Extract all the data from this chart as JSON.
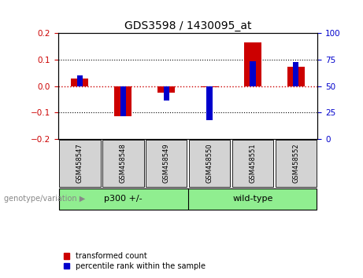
{
  "title": "GDS3598 / 1430095_at",
  "samples": [
    "GSM458547",
    "GSM458548",
    "GSM458549",
    "GSM458550",
    "GSM458551",
    "GSM458552"
  ],
  "red_values": [
    0.03,
    -0.115,
    -0.025,
    -0.005,
    0.165,
    0.075
  ],
  "blue_values": [
    0.04,
    -0.113,
    -0.055,
    -0.13,
    0.095,
    0.09
  ],
  "ylim_left": [
    -0.2,
    0.2
  ],
  "ylim_right": [
    0,
    100
  ],
  "yticks_left": [
    -0.2,
    -0.1,
    0.0,
    0.1,
    0.2
  ],
  "yticks_right": [
    0,
    25,
    50,
    75,
    100
  ],
  "red_color": "#CC0000",
  "blue_color": "#0000CC",
  "red_bar_width": 0.4,
  "blue_bar_width": 0.13,
  "legend_red": "transformed count",
  "legend_blue": "percentile rank within the sample",
  "bg_color": "#FFFFFF",
  "plot_bg_color": "#FFFFFF",
  "zero_line_color": "#CC0000",
  "label_box_color": "#D3D3D3",
  "group_box_color": "#90EE90",
  "group_p300": "p300 +/-",
  "group_wt": "wild-type",
  "genotype_label": "genotype/variation"
}
